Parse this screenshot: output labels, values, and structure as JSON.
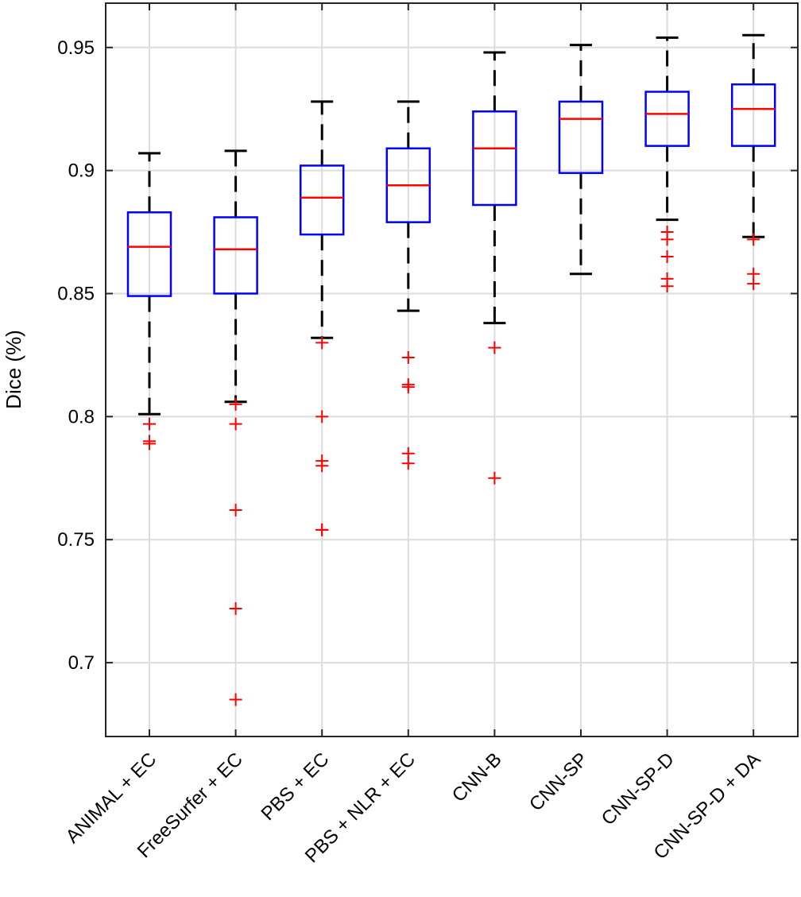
{
  "chart_data": {
    "type": "box",
    "title": "",
    "xlabel": "",
    "ylabel": "Dice (%)",
    "ylim": [
      0.67,
      0.968
    ],
    "yticks": [
      0.7,
      0.75,
      0.8,
      0.85,
      0.9,
      0.95
    ],
    "ytick_labels": [
      "0.7",
      "0.75",
      "0.8",
      "0.85",
      "0.9",
      "0.95"
    ],
    "grid": true,
    "legend": "none",
    "colors": {
      "box": "#0000ff",
      "median": "#ff0000",
      "whisker": "#000000",
      "outlier": "#ff0000",
      "grid": "#dcdcdc",
      "axes": "#262626"
    },
    "categories": [
      "ANIMAL + EC",
      "FreeSurfer + EC",
      "PBS + EC",
      "PBS + NLR + EC",
      "CNN-B",
      "CNN-SP",
      "CNN-SP-D",
      "CNN-SP-D + DA"
    ],
    "boxes": [
      {
        "whisker_low": 0.801,
        "q1": 0.849,
        "median": 0.869,
        "q3": 0.883,
        "whisker_high": 0.907,
        "outliers": [
          0.797,
          0.79,
          0.789
        ]
      },
      {
        "whisker_low": 0.806,
        "q1": 0.85,
        "median": 0.868,
        "q3": 0.881,
        "whisker_high": 0.908,
        "outliers": [
          0.805,
          0.797,
          0.762,
          0.722,
          0.685
        ]
      },
      {
        "whisker_low": 0.832,
        "q1": 0.874,
        "median": 0.889,
        "q3": 0.902,
        "whisker_high": 0.928,
        "outliers": [
          0.83,
          0.8,
          0.782,
          0.78,
          0.754,
          0.754
        ]
      },
      {
        "whisker_low": 0.843,
        "q1": 0.879,
        "median": 0.894,
        "q3": 0.909,
        "whisker_high": 0.928,
        "outliers": [
          0.824,
          0.813,
          0.812,
          0.785,
          0.781
        ]
      },
      {
        "whisker_low": 0.838,
        "q1": 0.886,
        "median": 0.909,
        "q3": 0.924,
        "whisker_high": 0.948,
        "outliers": [
          0.828,
          0.775
        ]
      },
      {
        "whisker_low": 0.858,
        "q1": 0.899,
        "median": 0.921,
        "q3": 0.928,
        "whisker_high": 0.951,
        "outliers": []
      },
      {
        "whisker_low": 0.88,
        "q1": 0.91,
        "median": 0.923,
        "q3": 0.932,
        "whisker_high": 0.954,
        "outliers": [
          0.875,
          0.872,
          0.865,
          0.856,
          0.853
        ]
      },
      {
        "whisker_low": 0.873,
        "q1": 0.91,
        "median": 0.925,
        "q3": 0.935,
        "whisker_high": 0.955,
        "outliers": [
          0.872,
          0.858,
          0.854
        ]
      }
    ]
  }
}
